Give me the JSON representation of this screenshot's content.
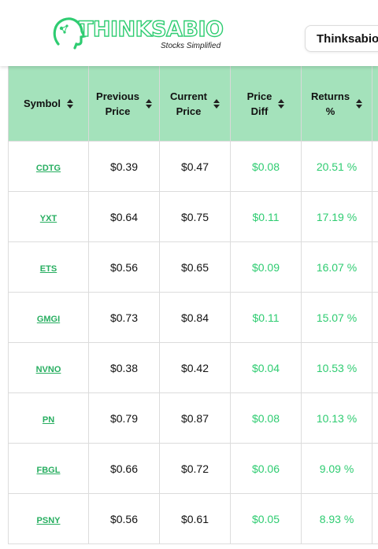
{
  "brand": {
    "name": "THINKSABIO",
    "tagline": "Stocks Simplified",
    "site_button": "Thinksabio"
  },
  "table": {
    "headers": [
      {
        "line1": "Symbol",
        "line2": ""
      },
      {
        "line1": "Previous",
        "line2": "Price"
      },
      {
        "line1": "Current",
        "line2": "Price"
      },
      {
        "line1": "Price",
        "line2": "Diff"
      },
      {
        "line1": "Returns",
        "line2": "%"
      }
    ],
    "rows": [
      {
        "symbol": "CDTG",
        "previous": "$0.39",
        "current": "$0.47",
        "diff": "$0.08",
        "returns": "20.51 %"
      },
      {
        "symbol": "YXT",
        "previous": "$0.64",
        "current": "$0.75",
        "diff": "$0.11",
        "returns": "17.19 %"
      },
      {
        "symbol": "ETS",
        "previous": "$0.56",
        "current": "$0.65",
        "diff": "$0.09",
        "returns": "16.07 %"
      },
      {
        "symbol": "GMGI",
        "previous": "$0.73",
        "current": "$0.84",
        "diff": "$0.11",
        "returns": "15.07 %"
      },
      {
        "symbol": "NVNO",
        "previous": "$0.38",
        "current": "$0.42",
        "diff": "$0.04",
        "returns": "10.53 %"
      },
      {
        "symbol": "PN",
        "previous": "$0.79",
        "current": "$0.87",
        "diff": "$0.08",
        "returns": "10.13 %"
      },
      {
        "symbol": "FBGL",
        "previous": "$0.66",
        "current": "$0.72",
        "diff": "$0.06",
        "returns": "9.09 %"
      },
      {
        "symbol": "PSNY",
        "previous": "$0.56",
        "current": "$0.61",
        "diff": "$0.05",
        "returns": "8.93 %"
      }
    ]
  },
  "colors": {
    "header_bg": "#a4e2bb",
    "accent_green": "#2ecc71"
  }
}
